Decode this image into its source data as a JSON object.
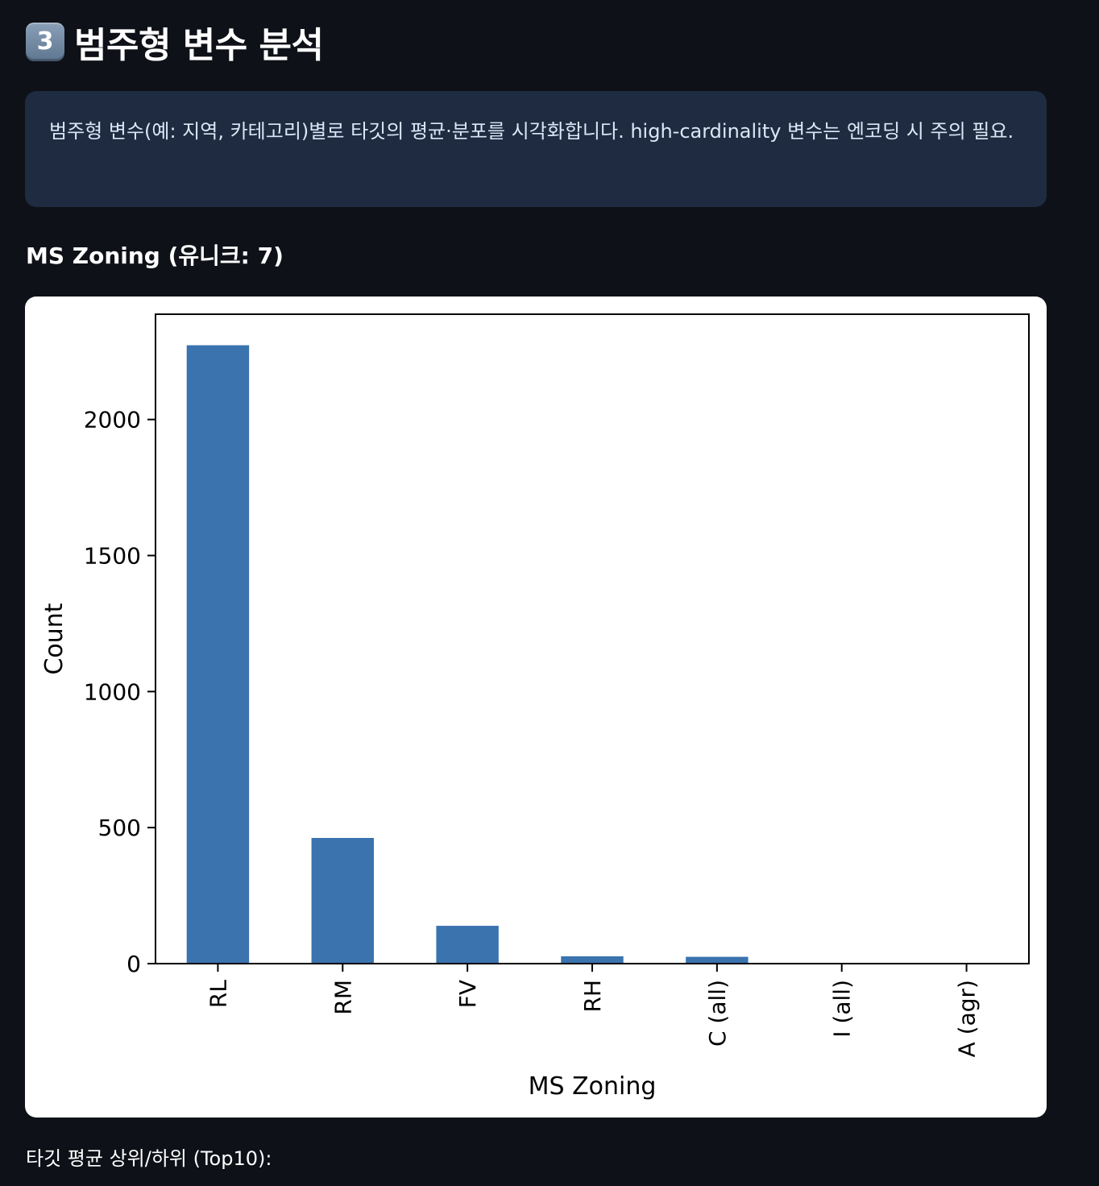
{
  "section": {
    "number_icon": "keycap-3-icon",
    "number_glyph": "3",
    "title": "범주형 변수 분석"
  },
  "info": {
    "text": "범주형 변수(예: 지역, 카테고리)별로 타깃의 평균·분포를 시각화합니다. high-cardinality 변수는 엔코딩 시 주의 필요."
  },
  "subheader": "MS Zoning (유니크: 7)",
  "footer": "타깃 평균 상위/하위 (Top10):",
  "colors": {
    "background": "#0e1117",
    "info_box": "#1e2b40",
    "bar": "#3a73ae"
  },
  "chart_data": {
    "type": "bar",
    "categories": [
      "RL",
      "RM",
      "FV",
      "RH",
      "C (all)",
      "I (all)",
      "A (agr)"
    ],
    "values": [
      2273,
      462,
      139,
      27,
      25,
      2,
      2
    ],
    "xlabel": "MS Zoning",
    "ylabel": "Count",
    "ylim": [
      0,
      2387
    ],
    "yticks": [
      0,
      500,
      1000,
      1500,
      2000
    ],
    "grid": false
  }
}
